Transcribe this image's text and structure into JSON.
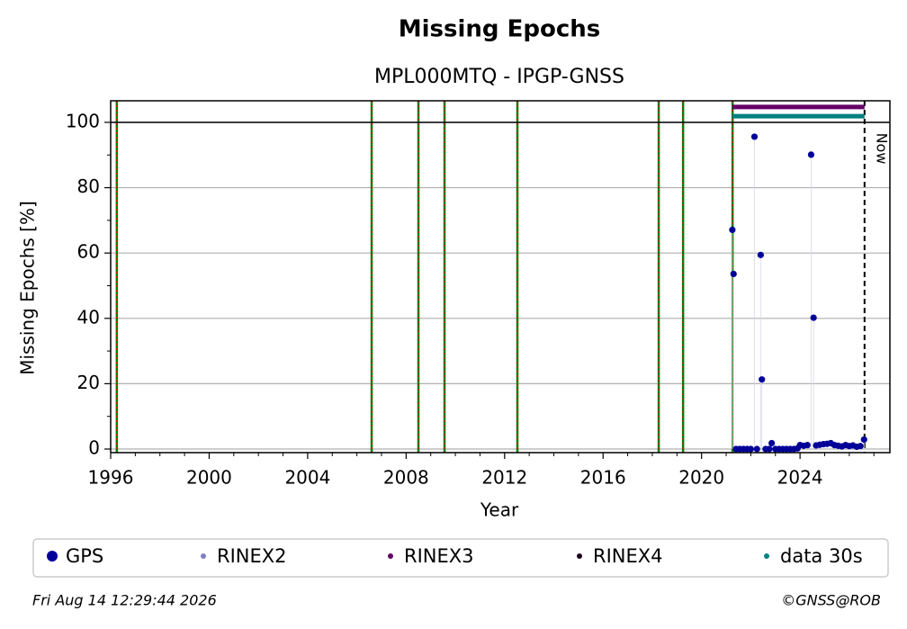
{
  "chart_data": {
    "type": "scatter",
    "title": "Missing Epochs",
    "subtitle": "MPL000MTQ - IPGP-GNSS",
    "x_label": "Year",
    "y_label": "Missing Epochs [%]",
    "xlim": [
      1996,
      2027.65
    ],
    "ylim": [
      -1.1,
      106.6
    ],
    "xticks": [
      1996,
      2000,
      2004,
      2008,
      2012,
      2016,
      2020,
      2024
    ],
    "yticks": [
      0,
      20,
      40,
      60,
      80,
      100
    ],
    "grid": true,
    "hline": 100,
    "event_lines": {
      "x": [
        1996.25,
        2006.6,
        2008.5,
        2009.56,
        2012.52,
        2018.26,
        2019.25,
        2021.26
      ],
      "color": "#008000",
      "dash_color": "#ff0000"
    },
    "now": 2026.62,
    "now_label": "Now",
    "series": [
      {
        "name": "GPS",
        "color": "#000099",
        "style": "scatter",
        "x": [
          2021.25,
          2021.3,
          2021.4,
          2021.55,
          2021.7,
          2021.85,
          2022.0,
          2022.15,
          2022.25,
          2022.4,
          2022.45,
          2022.6,
          2022.75,
          2022.85,
          2023.0,
          2023.15,
          2023.3,
          2023.45,
          2023.6,
          2023.75,
          2023.9,
          2024.0,
          2024.15,
          2024.3,
          2024.45,
          2024.55,
          2024.65,
          2024.8,
          2024.95,
          2025.1,
          2025.25,
          2025.4,
          2025.55,
          2025.7,
          2025.85,
          2026.0,
          2026.15,
          2026.3,
          2026.45,
          2026.6
        ],
        "values": [
          67.1,
          53.6,
          0,
          0,
          0,
          0,
          0,
          95.6,
          0,
          59.4,
          21.3,
          0,
          0,
          1.8,
          0,
          0,
          0,
          0,
          0,
          0,
          0.2,
          1.2,
          1.0,
          1.2,
          90.1,
          40.2,
          1.1,
          1.3,
          1.5,
          1.6,
          1.8,
          1.2,
          1.0,
          0.8,
          1.2,
          0.9,
          1.1,
          0.7,
          0.9,
          2.9
        ]
      },
      {
        "name": "RINEX2",
        "color": "#8080c0",
        "style": "line",
        "x": [],
        "values": []
      },
      {
        "name": "RINEX3",
        "color": "#660066",
        "style": "line",
        "x": [
          2021.25,
          2026.62
        ],
        "values": [
          104.7,
          104.7
        ]
      },
      {
        "name": "RINEX4",
        "color": "#1a001a",
        "style": "line",
        "x": [],
        "values": []
      },
      {
        "name": "data 30s",
        "color": "#008080",
        "style": "line",
        "x": [
          2021.25,
          2026.62
        ],
        "values": [
          101.9,
          101.9
        ]
      }
    ],
    "timestamp": "Fri Aug 14 12:29:44 2026",
    "credit": "©GNSS@ROB"
  }
}
